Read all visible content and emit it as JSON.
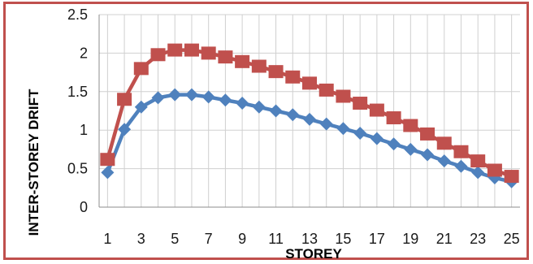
{
  "chart_data": {
    "type": "line",
    "xlabel": "STOREY",
    "ylabel": "INTER-STOREY DRIFT",
    "x": [
      1,
      2,
      3,
      4,
      5,
      6,
      7,
      8,
      9,
      10,
      11,
      12,
      13,
      14,
      15,
      16,
      17,
      18,
      19,
      20,
      21,
      22,
      23,
      24,
      25
    ],
    "x_tick_labels": [
      "1",
      "3",
      "5",
      "7",
      "9",
      "11",
      "13",
      "15",
      "17",
      "19",
      "21",
      "23",
      "25"
    ],
    "y_tick_labels": [
      "0",
      "0.5",
      "1",
      "1.5",
      "2",
      "2.5"
    ],
    "ylim": [
      0,
      2.5
    ],
    "grid": true,
    "legend": "none",
    "series": [
      {
        "color": "#4f81bd",
        "marker": "diamond",
        "values": [
          0.45,
          1.01,
          1.3,
          1.42,
          1.46,
          1.46,
          1.43,
          1.39,
          1.35,
          1.3,
          1.25,
          1.2,
          1.14,
          1.08,
          1.02,
          0.96,
          0.89,
          0.82,
          0.75,
          0.68,
          0.6,
          0.53,
          0.45,
          0.38,
          0.33
        ]
      },
      {
        "color": "#c0504d",
        "marker": "square",
        "values": [
          0.62,
          1.4,
          1.8,
          1.98,
          2.04,
          2.04,
          2.0,
          1.95,
          1.89,
          1.83,
          1.76,
          1.69,
          1.61,
          1.52,
          1.44,
          1.35,
          1.26,
          1.16,
          1.06,
          0.95,
          0.83,
          0.72,
          0.6,
          0.48,
          0.4
        ]
      }
    ]
  }
}
